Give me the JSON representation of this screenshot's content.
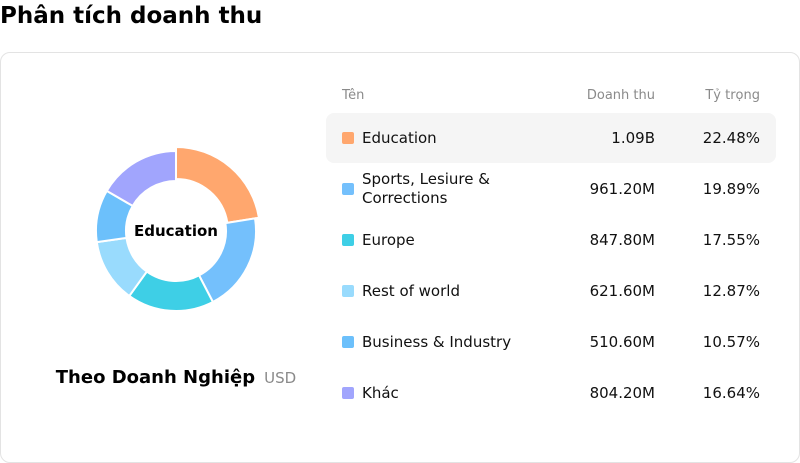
{
  "page": {
    "title": "Phân tích doanh thu"
  },
  "card": {
    "caption_title": "Theo Doanh Nghiệp",
    "caption_unit": "USD"
  },
  "table": {
    "headers": {
      "name": "Tên",
      "revenue": "Doanh thu",
      "share": "Tỷ trọng"
    },
    "rows": [
      {
        "name": "Education",
        "revenue": "1.09B",
        "share": "22.48%",
        "color": "#ffa76e",
        "highlighted": true
      },
      {
        "name": "Sports, Lesiure & Corrections",
        "revenue": "961.20M",
        "share": "19.89%",
        "color": "#74c0fc",
        "highlighted": false
      },
      {
        "name": "Europe",
        "revenue": "847.80M",
        "share": "17.55%",
        "color": "#3ecfe6",
        "highlighted": false
      },
      {
        "name": "Rest of world",
        "revenue": "621.60M",
        "share": "12.87%",
        "color": "#99dbfd",
        "highlighted": false
      },
      {
        "name": "Business & Industry",
        "revenue": "510.60M",
        "share": "10.57%",
        "color": "#6cc0fb",
        "highlighted": false
      },
      {
        "name": "Khác",
        "revenue": "804.20M",
        "share": "16.64%",
        "color": "#a1a5fd",
        "highlighted": false
      }
    ]
  },
  "chart_data": {
    "type": "pie",
    "subtype": "donut",
    "center_label": "Education",
    "selected": "Education",
    "categories": [
      "Education",
      "Sports, Lesiure & Corrections",
      "Europe",
      "Rest of world",
      "Business & Industry",
      "Khác"
    ],
    "values": [
      22.48,
      19.89,
      17.55,
      12.87,
      10.57,
      16.64
    ],
    "unit": "%",
    "colors": [
      "#ffa76e",
      "#74c0fc",
      "#3ecfe6",
      "#99dbfd",
      "#6cc0fb",
      "#a1a5fd"
    ]
  }
}
